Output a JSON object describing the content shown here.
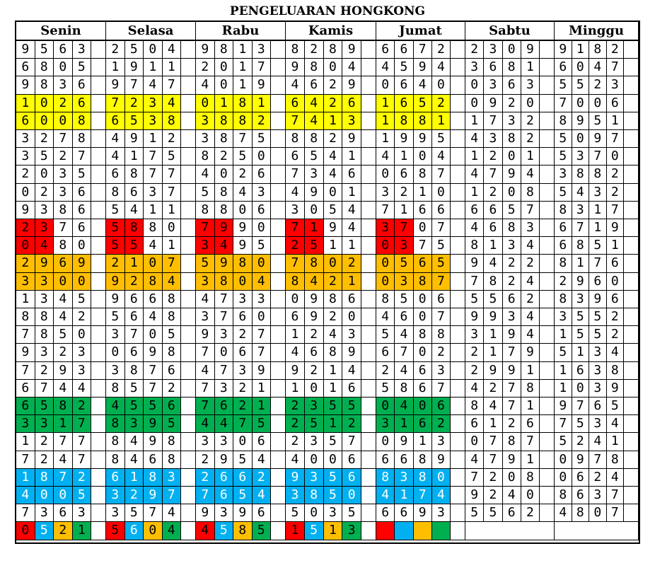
{
  "title": "PENGELUARAN HONGKONG",
  "days": [
    "Senin",
    "Selasa",
    "Rabu",
    "Kamis",
    "Jumat",
    "Sabtu",
    "Minggu"
  ],
  "palette": {
    "yellow": "#ffff00",
    "red": "#ff0000",
    "orange": "#ffbf00",
    "green": "#00b050",
    "blue": "#00b0f0"
  },
  "row_colors": [
    "",
    "",
    "",
    "yellow",
    "yellow",
    "",
    "",
    "",
    "",
    "",
    "red-partial",
    "red-partial",
    "orange",
    "orange",
    "",
    "",
    "",
    "",
    "",
    "",
    "green",
    "green",
    "",
    "",
    "blue",
    "blue",
    "",
    "legend"
  ],
  "columns": [
    [
      "9563",
      "6805",
      "9836",
      "1026",
      "6008",
      "3278",
      "3527",
      "2035",
      "0236",
      "9386",
      "2376",
      "0480",
      "2969",
      "3300",
      "1345",
      "8842",
      "7850",
      "9323",
      "7293",
      "6744",
      "6582",
      "3317",
      "1277",
      "7247",
      "1872",
      "4005",
      "7363",
      "0521"
    ],
    [
      "2504",
      "1911",
      "9747",
      "7234",
      "6538",
      "4912",
      "4175",
      "6877",
      "8637",
      "5411",
      "5880",
      "5541",
      "2107",
      "9284",
      "9668",
      "5648",
      "3705",
      "0698",
      "3876",
      "8572",
      "4556",
      "8395",
      "8498",
      "8468",
      "6183",
      "3297",
      "3574",
      "5604"
    ],
    [
      "9813",
      "2017",
      "4019",
      "0181",
      "3882",
      "3875",
      "8250",
      "4026",
      "5843",
      "8806",
      "7990",
      "3495",
      "5980",
      "3804",
      "4733",
      "3760",
      "9327",
      "7067",
      "4739",
      "7321",
      "7621",
      "4475",
      "3306",
      "2954",
      "2662",
      "7654",
      "9396",
      "4585"
    ],
    [
      "8289",
      "9804",
      "4629",
      "6426",
      "7413",
      "8829",
      "6541",
      "7346",
      "4901",
      "3054",
      "7194",
      "2511",
      "7802",
      "8421",
      "0986",
      "6920",
      "1243",
      "4689",
      "9214",
      "1016",
      "2355",
      "2512",
      "2357",
      "4006",
      "9356",
      "3850",
      "5035",
      "1513"
    ],
    [
      "6672",
      "4594",
      "0640",
      "1652",
      "1881",
      "1995",
      "4104",
      "0687",
      "3210",
      "7166",
      "3707",
      "0375",
      "0565",
      "0387",
      "8506",
      "4607",
      "5488",
      "6702",
      "2463",
      "5867",
      "0406",
      "3162",
      "0913",
      "6689",
      "8380",
      "4174",
      "6693",
      ""
    ],
    [
      "2309",
      "3681",
      "0363",
      "0920",
      "1732",
      "4382",
      "1201",
      "4794",
      "1208",
      "6657",
      "4683",
      "8134",
      "9422",
      "7824",
      "5562",
      "9934",
      "3194",
      "2179",
      "2991",
      "4278",
      "8471",
      "6126",
      "0787",
      "4791",
      "7208",
      "9240",
      "5562",
      ""
    ],
    [
      "9182",
      "6047",
      "5523",
      "7006",
      "8951",
      "5097",
      "5370",
      "3882",
      "5432",
      "8317",
      "6719",
      "6851",
      "8176",
      "2960",
      "8396",
      "3552",
      "1552",
      "5134",
      "1638",
      "1039",
      "9765",
      "7534",
      "5241",
      "0978",
      "0624",
      "8637",
      "4807",
      ""
    ]
  ],
  "legend_colors": [
    "#ff0000",
    "#00b0f0",
    "#ffbf00",
    "#00b050"
  ]
}
